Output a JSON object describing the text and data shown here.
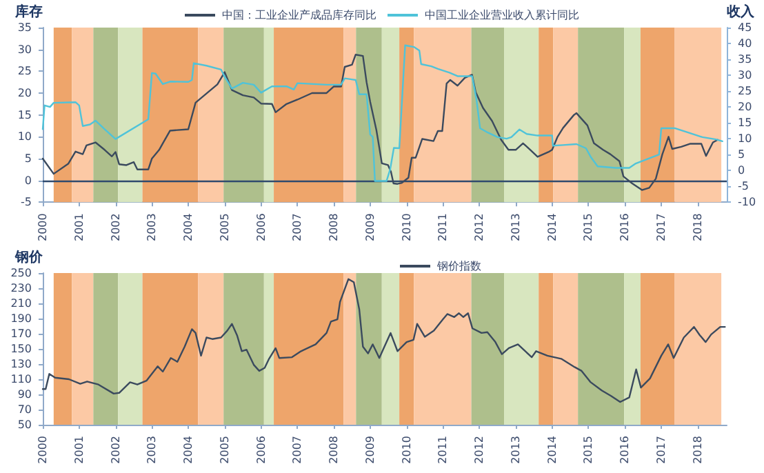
{
  "chart_data": [
    {
      "type": "line",
      "ylabel": "库存",
      "y2label": "收入",
      "xlim": [
        2000,
        2018.8
      ],
      "xticks": [
        2000,
        2001,
        2002,
        2003,
        2004,
        2005,
        2006,
        2007,
        2008,
        2009,
        2010,
        2011,
        2012,
        2013,
        2014,
        2015,
        2016,
        2017,
        2018
      ],
      "ylim": [
        -5,
        35
      ],
      "yticks": [
        -5,
        0,
        5,
        10,
        15,
        20,
        25,
        30,
        35
      ],
      "y2lim": [
        -10,
        45
      ],
      "y2ticks": [
        -10,
        -5,
        0,
        5,
        10,
        15,
        20,
        25,
        30,
        35,
        40,
        45
      ],
      "grid": false,
      "legend": "top",
      "marker": "none",
      "ref_lines": [
        {
          "axis": "y",
          "value": 0,
          "color": "#2f4a6e"
        }
      ],
      "bands": [
        {
          "axis": "x",
          "from": 2000.3,
          "to": 2000.8,
          "color": "#eea56b"
        },
        {
          "axis": "x",
          "from": 2000.8,
          "to": 2001.39,
          "color": "#fcc9a5"
        },
        {
          "axis": "x",
          "from": 2001.39,
          "to": 2002.07,
          "color": "#aebf8c"
        },
        {
          "axis": "x",
          "from": 2002.07,
          "to": 2002.74,
          "color": "#d8e6bf"
        },
        {
          "axis": "x",
          "from": 2002.74,
          "to": 2004.27,
          "color": "#eea56b"
        },
        {
          "axis": "x",
          "from": 2004.27,
          "to": 2004.97,
          "color": "#fcc9a5"
        },
        {
          "axis": "x",
          "from": 2004.97,
          "to": 2006.08,
          "color": "#aebf8c"
        },
        {
          "axis": "x",
          "from": 2006.08,
          "to": 2006.35,
          "color": "#d8e6bf"
        },
        {
          "axis": "x",
          "from": 2006.35,
          "to": 2008.27,
          "color": "#eea56b"
        },
        {
          "axis": "x",
          "from": 2008.27,
          "to": 2008.61,
          "color": "#fcc9a5"
        },
        {
          "axis": "x",
          "from": 2008.61,
          "to": 2009.32,
          "color": "#aebf8c"
        },
        {
          "axis": "x",
          "from": 2009.32,
          "to": 2009.8,
          "color": "#d8e6bf"
        },
        {
          "axis": "x",
          "from": 2009.8,
          "to": 2010.2,
          "color": "#eea56b"
        },
        {
          "axis": "x",
          "from": 2010.2,
          "to": 2011.78,
          "color": "#fcc9a5"
        },
        {
          "axis": "x",
          "from": 2011.78,
          "to": 2012.68,
          "color": "#aebf8c"
        },
        {
          "axis": "x",
          "from": 2012.68,
          "to": 2013.63,
          "color": "#d8e6bf"
        },
        {
          "axis": "x",
          "from": 2013.63,
          "to": 2014.03,
          "color": "#eea56b"
        },
        {
          "axis": "x",
          "from": 2014.03,
          "to": 2014.71,
          "color": "#fcc9a5"
        },
        {
          "axis": "x",
          "from": 2014.71,
          "to": 2015.98,
          "color": "#aebf8c"
        },
        {
          "axis": "x",
          "from": 2015.98,
          "to": 2016.43,
          "color": "#d8e6bf"
        },
        {
          "axis": "x",
          "from": 2016.43,
          "to": 2017.37,
          "color": "#eea56b"
        },
        {
          "axis": "x",
          "from": 2017.37,
          "to": 2018.65,
          "color": "#fcc9a5"
        }
      ],
      "series": [
        {
          "name": "中国：工业企业产成品库存同比",
          "color": "#3b4a5e",
          "x": [
            2000.0,
            2000.3,
            2000.7,
            2000.9,
            2001.1,
            2001.2,
            2001.45,
            2001.7,
            2001.9,
            2002.0,
            2002.1,
            2002.3,
            2002.5,
            2002.6,
            2002.9,
            2003.0,
            2003.2,
            2003.3,
            2003.5,
            2004.0,
            2004.2,
            2004.5,
            2004.8,
            2005.0,
            2005.2,
            2005.5,
            2005.8,
            2006.0,
            2006.3,
            2006.4,
            2006.7,
            2007.0,
            2007.4,
            2007.8,
            2008.0,
            2008.2,
            2008.3,
            2008.5,
            2008.6,
            2008.8,
            2008.9,
            2009.0,
            2009.17,
            2009.25,
            2009.32,
            2009.49,
            2009.57,
            2009.64,
            2009.75,
            2009.86,
            2010.05,
            2010.14,
            2010.25,
            2010.43,
            2010.74,
            2010.86,
            2010.98,
            2011.1,
            2011.2,
            2011.4,
            2011.6,
            2011.8,
            2011.9,
            2012.1,
            2012.35,
            2012.6,
            2012.8,
            2013.0,
            2013.2,
            2013.4,
            2013.6,
            2013.9,
            2014.0,
            2014.15,
            2014.3,
            2014.6,
            2014.67,
            2014.97,
            2015.15,
            2015.4,
            2015.6,
            2015.85,
            2015.96,
            2016.2,
            2016.47,
            2016.67,
            2016.85,
            2017.03,
            2017.2,
            2017.3,
            2017.55,
            2017.8,
            2018.1,
            2018.23,
            2018.42,
            2018.55
          ],
          "values": [
            5,
            1.5,
            3.8,
            6.6,
            6,
            8,
            8.7,
            7,
            5.5,
            6.5,
            3.7,
            3.5,
            4.2,
            2.5,
            2.5,
            5,
            7,
            8.5,
            11.4,
            11.7,
            17.8,
            19.9,
            22,
            24.8,
            20.7,
            19.5,
            19,
            17.6,
            17.5,
            15.6,
            17.5,
            18.5,
            20,
            20,
            21.5,
            21.5,
            26,
            26.5,
            28.8,
            28.5,
            22.5,
            18,
            11.5,
            7.5,
            3.9,
            3.5,
            2,
            -0.7,
            -0.8,
            -0.6,
            0.6,
            5.2,
            5.2,
            9.5,
            9,
            11.3,
            11.3,
            22.2,
            23,
            21.7,
            23.5,
            24.2,
            20.2,
            16.6,
            13.6,
            9.3,
            7,
            7,
            8.5,
            7,
            5.4,
            6.5,
            7,
            10,
            12,
            15,
            15.4,
            12.6,
            8.5,
            7,
            6,
            4.4,
            0.9,
            -0.7,
            -2.2,
            -1.7,
            0.4,
            6,
            10,
            7.2,
            7.7,
            8.4,
            8.4,
            5.6,
            8.7,
            9.3
          ]
        },
        {
          "name": "中国工业企业营业收入累计同比",
          "color": "#4fc3d9",
          "axis": "y2",
          "x": [
            2000.0,
            2000.05,
            2000.2,
            2000.3,
            2000.9,
            2001.0,
            2001.1,
            2001.3,
            2001.45,
            2001.7,
            2002.0,
            2002.9,
            2003.0,
            2003.1,
            2003.3,
            2003.5,
            2004.0,
            2004.1,
            2004.15,
            2004.5,
            2004.9,
            2005.0,
            2005.2,
            2005.5,
            2005.8,
            2006.0,
            2006.3,
            2006.7,
            2006.9,
            2007.0,
            2007.8,
            2008.2,
            2008.3,
            2008.6,
            2008.7,
            2008.9,
            2009.0,
            2009.07,
            2009.13,
            2009.3,
            2009.45,
            2009.55,
            2009.65,
            2009.8,
            2009.96,
            2010.2,
            2010.35,
            2010.4,
            2010.68,
            2010.86,
            2011.18,
            2011.4,
            2011.8,
            2011.92,
            2012.02,
            2012.24,
            2012.5,
            2012.75,
            2012.88,
            2013.1,
            2013.3,
            2013.6,
            2014.0,
            2014.02,
            2014.3,
            2014.67,
            2014.93,
            2015.06,
            2015.25,
            2015.75,
            2016.12,
            2016.3,
            2016.62,
            2016.94,
            2017.0,
            2017.37,
            2017.75,
            2018.13,
            2018.5,
            2018.68
          ],
          "values": [
            13,
            20.5,
            20,
            21.3,
            21.5,
            20.5,
            14,
            14.5,
            15.7,
            13,
            9.9,
            16.1,
            30.7,
            30.5,
            27.2,
            28,
            27.9,
            28.5,
            33.8,
            33,
            31.8,
            29.5,
            25.8,
            27.6,
            27,
            24.5,
            26.5,
            26.5,
            25.5,
            27.5,
            27,
            27,
            29,
            28.5,
            24,
            24,
            11.3,
            10.6,
            -3.3,
            -3.3,
            -3.3,
            0.4,
            7.1,
            7,
            39.4,
            38.9,
            37.8,
            33.5,
            32.8,
            32,
            30.8,
            29.7,
            29.7,
            22.4,
            13.3,
            11.9,
            10.5,
            10,
            10.5,
            12.9,
            11.5,
            11,
            11,
            7.8,
            8,
            8.3,
            7,
            4.3,
            1.3,
            0.8,
            0.8,
            2.2,
            3.6,
            5,
            13.3,
            13.3,
            11.9,
            10.5,
            9.8,
            9.2
          ]
        }
      ]
    },
    {
      "type": "line",
      "ylabel": "钢价",
      "xlim": [
        2000,
        2018.8
      ],
      "xticks": [
        2000,
        2001,
        2002,
        2003,
        2004,
        2005,
        2006,
        2007,
        2008,
        2009,
        2010,
        2011,
        2012,
        2013,
        2014,
        2015,
        2016,
        2017,
        2018
      ],
      "ylim": [
        50,
        250
      ],
      "yticks": [
        50,
        70,
        90,
        110,
        130,
        150,
        170,
        190,
        210,
        230,
        250
      ],
      "grid": false,
      "legend": "top right",
      "marker": "none",
      "bands": [
        {
          "axis": "x",
          "from": 2000.3,
          "to": 2000.8,
          "color": "#eea56b"
        },
        {
          "axis": "x",
          "from": 2000.8,
          "to": 2001.39,
          "color": "#fcc9a5"
        },
        {
          "axis": "x",
          "from": 2001.39,
          "to": 2002.07,
          "color": "#aebf8c"
        },
        {
          "axis": "x",
          "from": 2002.07,
          "to": 2002.74,
          "color": "#d8e6bf"
        },
        {
          "axis": "x",
          "from": 2002.74,
          "to": 2004.27,
          "color": "#eea56b"
        },
        {
          "axis": "x",
          "from": 2004.27,
          "to": 2004.97,
          "color": "#fcc9a5"
        },
        {
          "axis": "x",
          "from": 2004.97,
          "to": 2006.08,
          "color": "#aebf8c"
        },
        {
          "axis": "x",
          "from": 2006.08,
          "to": 2006.35,
          "color": "#d8e6bf"
        },
        {
          "axis": "x",
          "from": 2006.35,
          "to": 2008.27,
          "color": "#eea56b"
        },
        {
          "axis": "x",
          "from": 2008.27,
          "to": 2008.61,
          "color": "#fcc9a5"
        },
        {
          "axis": "x",
          "from": 2008.61,
          "to": 2009.32,
          "color": "#aebf8c"
        },
        {
          "axis": "x",
          "from": 2009.32,
          "to": 2009.8,
          "color": "#d8e6bf"
        },
        {
          "axis": "x",
          "from": 2009.8,
          "to": 2010.2,
          "color": "#eea56b"
        },
        {
          "axis": "x",
          "from": 2010.2,
          "to": 2011.78,
          "color": "#fcc9a5"
        },
        {
          "axis": "x",
          "from": 2011.78,
          "to": 2012.68,
          "color": "#aebf8c"
        },
        {
          "axis": "x",
          "from": 2012.68,
          "to": 2013.63,
          "color": "#d8e6bf"
        },
        {
          "axis": "x",
          "from": 2013.63,
          "to": 2014.03,
          "color": "#eea56b"
        },
        {
          "axis": "x",
          "from": 2014.03,
          "to": 2014.71,
          "color": "#fcc9a5"
        },
        {
          "axis": "x",
          "from": 2014.71,
          "to": 2015.98,
          "color": "#aebf8c"
        },
        {
          "axis": "x",
          "from": 2015.98,
          "to": 2016.43,
          "color": "#d8e6bf"
        },
        {
          "axis": "x",
          "from": 2016.43,
          "to": 2017.37,
          "color": "#eea56b"
        },
        {
          "axis": "x",
          "from": 2017.37,
          "to": 2018.65,
          "color": "#fcc9a5"
        }
      ],
      "series": [
        {
          "name": "钢价指数",
          "color": "#3b4a5e",
          "x": [
            2000.0,
            2000.08,
            2000.18,
            2000.34,
            2000.72,
            2001.03,
            2001.22,
            2001.53,
            2001.95,
            2002.1,
            2002.4,
            2002.6,
            2002.85,
            2003.16,
            2003.3,
            2003.52,
            2003.7,
            2003.9,
            2004.1,
            2004.2,
            2004.35,
            2004.5,
            2004.66,
            2004.9,
            2005.07,
            2005.2,
            2005.34,
            2005.47,
            2005.6,
            2005.8,
            2005.95,
            2006.1,
            2006.22,
            2006.4,
            2006.5,
            2006.85,
            2007.1,
            2007.5,
            2007.8,
            2007.92,
            2008.1,
            2008.17,
            2008.4,
            2008.55,
            2008.7,
            2008.8,
            2008.94,
            2009.07,
            2009.25,
            2009.56,
            2009.75,
            2010.0,
            2010.19,
            2010.29,
            2010.5,
            2010.75,
            2011.0,
            2011.12,
            2011.31,
            2011.44,
            2011.56,
            2011.69,
            2011.81,
            2012.06,
            2012.22,
            2012.44,
            2012.62,
            2012.81,
            2013.06,
            2013.44,
            2013.56,
            2013.87,
            2014.25,
            2014.62,
            2014.81,
            2015.06,
            2015.37,
            2015.62,
            2015.87,
            2016.12,
            2016.31,
            2016.44,
            2016.69,
            2017.0,
            2017.19,
            2017.34,
            2017.62,
            2017.9,
            2018.06,
            2018.22,
            2018.37,
            2018.62,
            2018.75
          ],
          "values": [
            97,
            97,
            117,
            112,
            110,
            104,
            107,
            103,
            91,
            92,
            106,
            103,
            108,
            127,
            120,
            138,
            133,
            153,
            176,
            171,
            141,
            165,
            163,
            165,
            174,
            183,
            168,
            147,
            149,
            129,
            121,
            125,
            137,
            151,
            138,
            139,
            147,
            156,
            171,
            186,
            189,
            212,
            242,
            238,
            202,
            153,
            144,
            156,
            138,
            171,
            147,
            159,
            162,
            183,
            166,
            174,
            189,
            196,
            192,
            197,
            192,
            197,
            177,
            171,
            172,
            159,
            143,
            151,
            156,
            139,
            147,
            141,
            137,
            126,
            121,
            106,
            95,
            88,
            80,
            86,
            123,
            99,
            111,
            141,
            156,
            138,
            165,
            179,
            168,
            159,
            169,
            179,
            179
          ]
        }
      ]
    }
  ]
}
